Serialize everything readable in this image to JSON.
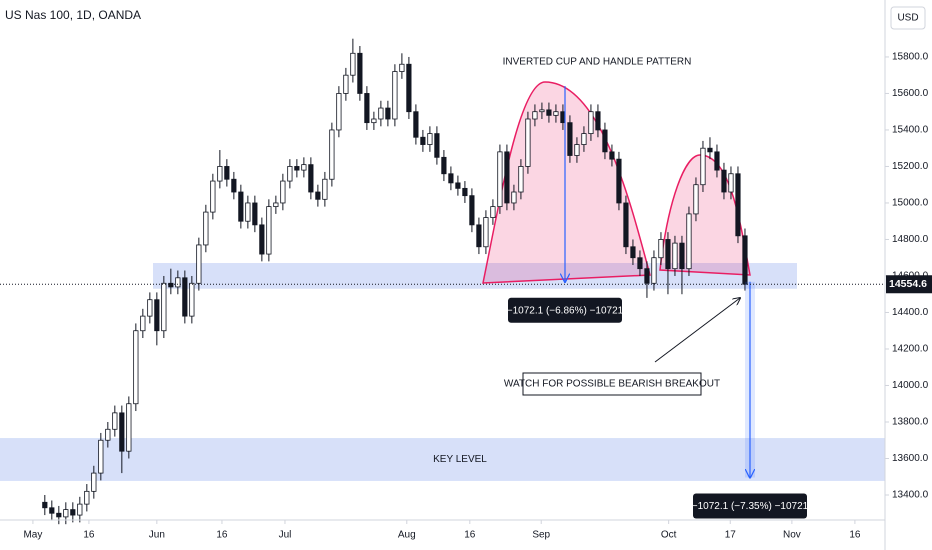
{
  "chart_data": {
    "type": "candlestick",
    "title": "US Nas 100, 1D, OANDA",
    "currency": "USD",
    "x": [
      0,
      1,
      2,
      3,
      4,
      5,
      6,
      7,
      8,
      9,
      10,
      11,
      12,
      13,
      14,
      15,
      16,
      17,
      18,
      19,
      20,
      21,
      22,
      23,
      24,
      25,
      26,
      27,
      28,
      29,
      30,
      31,
      32,
      33,
      34,
      35,
      36,
      37,
      38,
      39,
      40,
      41,
      42,
      43,
      44,
      45,
      46,
      47,
      48,
      49,
      50,
      51,
      52,
      53,
      54,
      55,
      56,
      57,
      58,
      59,
      60,
      61,
      62,
      63,
      64,
      65,
      66,
      67,
      68,
      69,
      70,
      71,
      72,
      73,
      74,
      75,
      76,
      77,
      78,
      79,
      80,
      81,
      82,
      83,
      84,
      85,
      86,
      87,
      88,
      89,
      90,
      91,
      92,
      93,
      94,
      95,
      96,
      97,
      98,
      99,
      100
    ],
    "open": [
      13360,
      13330,
      13300,
      13280,
      13320,
      13290,
      13350,
      13420,
      13520,
      13700,
      13760,
      13850,
      13640,
      13900,
      14300,
      14380,
      14470,
      14300,
      14560,
      14540,
      14590,
      14380,
      14560,
      14770,
      14950,
      15120,
      15200,
      15130,
      15060,
      14900,
      15000,
      14880,
      14720,
      14980,
      15000,
      15120,
      15200,
      15180,
      15210,
      15060,
      15020,
      15130,
      15400,
      15600,
      15700,
      15820,
      15600,
      15440,
      15460,
      15520,
      15460,
      15720,
      15760,
      15500,
      15360,
      15320,
      15380,
      15250,
      15160,
      15110,
      15080,
      15040,
      14880,
      14760,
      14920,
      14980,
      15280,
      15000,
      15060,
      15200,
      15460,
      15500,
      15510,
      15480,
      15500,
      15440,
      15260,
      15320,
      15380,
      15500,
      15400,
      15280,
      15240,
      15000,
      14760,
      14700,
      14640,
      14560,
      14700,
      14800,
      14640,
      14780,
      14640,
      14940,
      15100,
      15300,
      15280,
      15180,
      15060,
      15160,
      14820
    ],
    "high": [
      13400,
      13370,
      13340,
      13360,
      13360,
      13390,
      13460,
      13560,
      13740,
      13800,
      13890,
      13890,
      13940,
      14340,
      14420,
      14510,
      14510,
      14600,
      14640,
      14630,
      14630,
      14600,
      14810,
      14990,
      15160,
      15290,
      15240,
      15170,
      15100,
      15040,
      15040,
      14920,
      15020,
      15040,
      15160,
      15240,
      15240,
      15250,
      15250,
      15100,
      15170,
      15440,
      15640,
      15740,
      15900,
      15860,
      15640,
      15500,
      15560,
      15560,
      15760,
      15820,
      15800,
      15540,
      15400,
      15420,
      15420,
      15290,
      15200,
      15150,
      15120,
      15080,
      14920,
      14960,
      15020,
      15320,
      15320,
      15100,
      15240,
      15500,
      15540,
      15550,
      15550,
      15540,
      15540,
      15480,
      15360,
      15420,
      15540,
      15540,
      15440,
      15320,
      15280,
      15040,
      14800,
      14740,
      14680,
      14740,
      14840,
      14840,
      14820,
      14820,
      14980,
      15140,
      15340,
      15360,
      15320,
      15220,
      15200,
      15200,
      14860
    ],
    "low": [
      13290,
      13260,
      13240,
      13240,
      13250,
      13250,
      13310,
      13380,
      13480,
      13660,
      13720,
      13520,
      13600,
      13860,
      14260,
      14340,
      14220,
      14260,
      14500,
      14500,
      14340,
      14340,
      14520,
      14730,
      14910,
      15080,
      15090,
      15020,
      14860,
      14860,
      14840,
      14680,
      14680,
      14940,
      14960,
      15080,
      15140,
      15140,
      15020,
      14980,
      14980,
      15090,
      15360,
      15560,
      15660,
      15560,
      15400,
      15400,
      15420,
      15420,
      15420,
      15680,
      15460,
      15320,
      15280,
      15280,
      15210,
      15120,
      15070,
      15040,
      15000,
      14840,
      14720,
      14720,
      14880,
      14940,
      14960,
      14960,
      15020,
      15160,
      15420,
      15460,
      15440,
      15440,
      15400,
      15220,
      15220,
      15280,
      15340,
      15360,
      15240,
      15200,
      14960,
      14720,
      14660,
      14600,
      14480,
      14520,
      14660,
      14500,
      14600,
      14500,
      14600,
      14900,
      15060,
      15240,
      15140,
      15020,
      15020,
      14780,
      14520
    ],
    "close": [
      13330,
      13300,
      13280,
      13320,
      13290,
      13350,
      13420,
      13520,
      13700,
      13760,
      13850,
      13640,
      13900,
      14300,
      14380,
      14470,
      14300,
      14560,
      14540,
      14590,
      14380,
      14560,
      14770,
      14950,
      15120,
      15200,
      15130,
      15060,
      14900,
      15000,
      14880,
      14720,
      14980,
      15000,
      15120,
      15200,
      15180,
      15210,
      15060,
      15020,
      15130,
      15400,
      15600,
      15700,
      15820,
      15600,
      15440,
      15460,
      15520,
      15460,
      15720,
      15760,
      15500,
      15360,
      15320,
      15380,
      15250,
      15160,
      15110,
      15080,
      15040,
      14880,
      14760,
      14920,
      14980,
      15280,
      15000,
      15060,
      15200,
      15460,
      15500,
      15510,
      15480,
      15500,
      15440,
      15260,
      15320,
      15380,
      15500,
      15400,
      15280,
      15240,
      15000,
      14760,
      14700,
      14640,
      14560,
      14700,
      14800,
      14640,
      14780,
      14640,
      14940,
      15100,
      15300,
      15280,
      15180,
      15060,
      15160,
      14820,
      14554.6
    ],
    "xlim": [
      -6.4,
      120
    ],
    "xticks": [
      {
        "value": -1.7,
        "label": "May"
      },
      {
        "value": 6.3,
        "label": "16"
      },
      {
        "value": 16,
        "label": "Jun"
      },
      {
        "value": 25.3,
        "label": "16"
      },
      {
        "value": 34.3,
        "label": "Jul"
      },
      {
        "value": 51.7,
        "label": "Aug"
      },
      {
        "value": 60.7,
        "label": "16"
      },
      {
        "value": 70.9,
        "label": "Sep"
      },
      {
        "value": 89.1,
        "label": "Oct"
      },
      {
        "value": 97.9,
        "label": "17"
      },
      {
        "value": 106.7,
        "label": "Nov"
      },
      {
        "value": 115.7,
        "label": "16"
      }
    ],
    "ylim": [
      13263,
      16112
    ],
    "yticks": [
      {
        "value": 13400,
        "label": "13400.0"
      },
      {
        "value": 13600,
        "label": "13600.0"
      },
      {
        "value": 13800,
        "label": "13800.0"
      },
      {
        "value": 14000,
        "label": "14000.0"
      },
      {
        "value": 14200,
        "label": "14200.0"
      },
      {
        "value": 14400,
        "label": "14400.0"
      },
      {
        "value": 14600,
        "label": "14600.0"
      },
      {
        "value": 14800,
        "label": "14800.0"
      },
      {
        "value": 15000,
        "label": "15000.0"
      },
      {
        "value": 15200,
        "label": "15200.0"
      },
      {
        "value": 15400,
        "label": "15400.0"
      },
      {
        "value": 15600,
        "label": "15600.0"
      },
      {
        "value": 15800,
        "label": "15800.0"
      }
    ],
    "up_color": "#ffffff",
    "down_color": "#131722",
    "zones": [
      {
        "from": 14530,
        "to": 14671,
        "color": "#c9d5f7"
      },
      {
        "from": 13477,
        "to": 13712,
        "color": "#c9d5f7",
        "label": "KEY LEVEL"
      }
    ],
    "measures": [
      {
        "from": 15640,
        "to": 14568,
        "label": "−1072.1 (−6.86%) −10721"
      },
      {
        "from": 14568,
        "to": 13496,
        "label": "−1072.1 (−7.35%) −10721"
      }
    ],
    "annotations": [
      "INVERTED CUP AND HANDLE PATTERN",
      "WATCH FOR POSSIBLE BEARISH BREAKOUT"
    ]
  }
}
